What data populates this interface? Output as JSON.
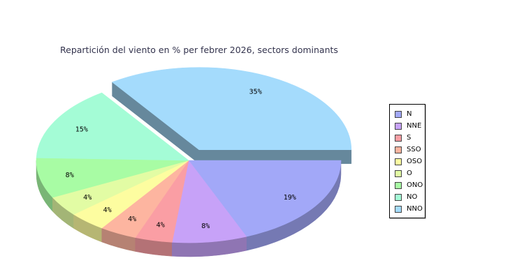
{
  "title": "Repartición del viento en % per febrer 2026, sectors dominants",
  "chart_data": {
    "type": "pie",
    "title": "Repartición del viento en % per febrer 2026, sectors dominants",
    "slices": [
      {
        "label": "N",
        "value": 19,
        "display": "19%",
        "color": "#a2a8f8"
      },
      {
        "label": "NNE",
        "value": 8,
        "display": "8%",
        "color": "#c7a2f8"
      },
      {
        "label": "S",
        "value": 4,
        "display": "4%",
        "color": "#fa9ea4"
      },
      {
        "label": "SSO",
        "value": 4,
        "display": "4%",
        "color": "#fdb5a0"
      },
      {
        "label": "OSO",
        "value": 4,
        "display": "4%",
        "color": "#fdfda0"
      },
      {
        "label": "O",
        "value": 4,
        "display": "4%",
        "color": "#e2fca4"
      },
      {
        "label": "ONO",
        "value": 8,
        "display": "8%",
        "color": "#a8fca4"
      },
      {
        "label": "NO",
        "value": 15,
        "display": "15%",
        "color": "#a4fcd6"
      },
      {
        "label": "NNO",
        "value": 35,
        "display": "35%",
        "color": "#a4dbfc"
      }
    ],
    "exploded": "NNO",
    "style": "3d",
    "legend_position": "right"
  }
}
